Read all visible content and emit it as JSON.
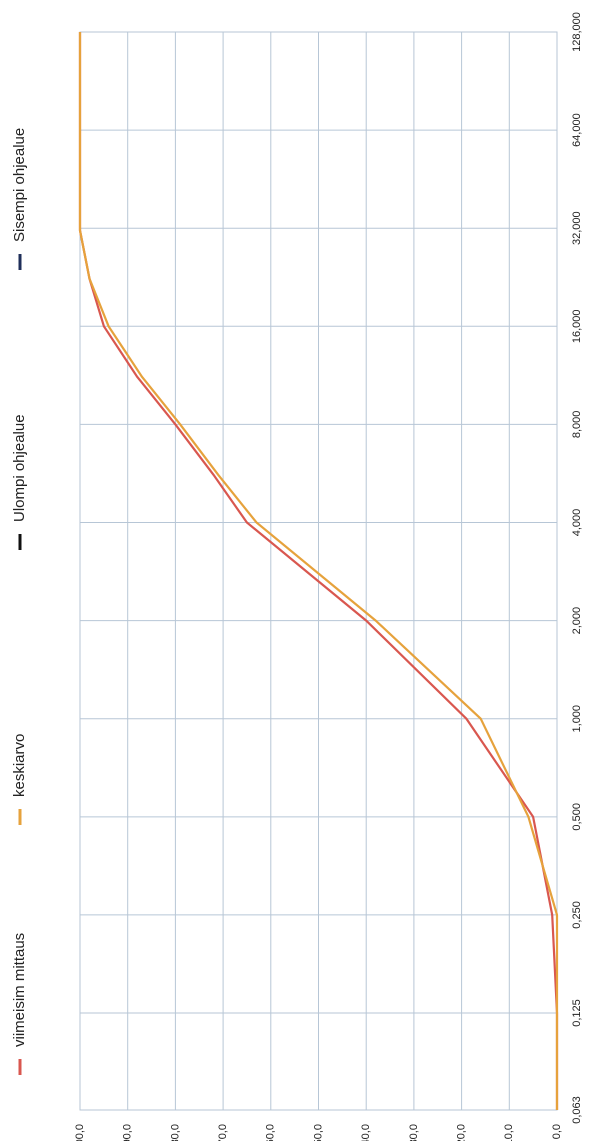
{
  "chart_data": {
    "type": "line",
    "x": [
      0.063,
      0.125,
      0.25,
      0.5,
      1,
      2,
      4,
      5.6,
      8,
      11.2,
      16,
      22.4,
      31.5,
      64,
      128
    ],
    "series": [
      {
        "name": "viimeisim mittaus",
        "color": "#d9574f",
        "values": [
          0,
          0,
          1,
          5,
          19,
          40,
          65,
          72,
          80,
          88,
          95,
          98,
          100,
          100,
          100
        ]
      },
      {
        "name": "keskiarvo",
        "color": "#e6a23c",
        "values": [
          0,
          0,
          0,
          6,
          16,
          38,
          63,
          71,
          79,
          87,
          94,
          98,
          100,
          100,
          100
        ]
      },
      {
        "name": "Ulompi ohjealue",
        "color": "#111111",
        "values": [
          null,
          null,
          null,
          null,
          null,
          null,
          null,
          null,
          null,
          null,
          null,
          null,
          null,
          null,
          null
        ]
      },
      {
        "name": "Sisempi ohjealue",
        "color": "#1f2f5a",
        "values": [
          null,
          null,
          null,
          null,
          null,
          null,
          null,
          null,
          null,
          null,
          null,
          null,
          null,
          null,
          null
        ]
      }
    ],
    "xscale": "log",
    "xlim": [
      0.063,
      128
    ],
    "xticks": [
      {
        "value": 0.063,
        "label": "0,063"
      },
      {
        "value": 0.125,
        "label": "0,125"
      },
      {
        "value": 0.25,
        "label": "0,250"
      },
      {
        "value": 0.5,
        "label": "0,500"
      },
      {
        "value": 1,
        "label": "1,000"
      },
      {
        "value": 2,
        "label": "2,000"
      },
      {
        "value": 4,
        "label": "4,000"
      },
      {
        "value": 8,
        "label": "8,000"
      },
      {
        "value": 16,
        "label": "16,000"
      },
      {
        "value": 32,
        "label": "32,000"
      },
      {
        "value": 64,
        "label": "64,000"
      },
      {
        "value": 128,
        "label": "128,000"
      }
    ],
    "ylim": [
      0,
      100
    ],
    "yticks": [
      {
        "value": 0,
        "label": "0,0"
      },
      {
        "value": 10,
        "label": "10,0"
      },
      {
        "value": 20,
        "label": "20,0"
      },
      {
        "value": 30,
        "label": "30,0"
      },
      {
        "value": 40,
        "label": "40,0"
      },
      {
        "value": 50,
        "label": "50,0"
      },
      {
        "value": 60,
        "label": "60,0"
      },
      {
        "value": 70,
        "label": "70,0"
      },
      {
        "value": 80,
        "label": "80,0"
      },
      {
        "value": 90,
        "label": "90,0"
      },
      {
        "value": 100,
        "label": "100,0"
      }
    ],
    "grid": true
  }
}
